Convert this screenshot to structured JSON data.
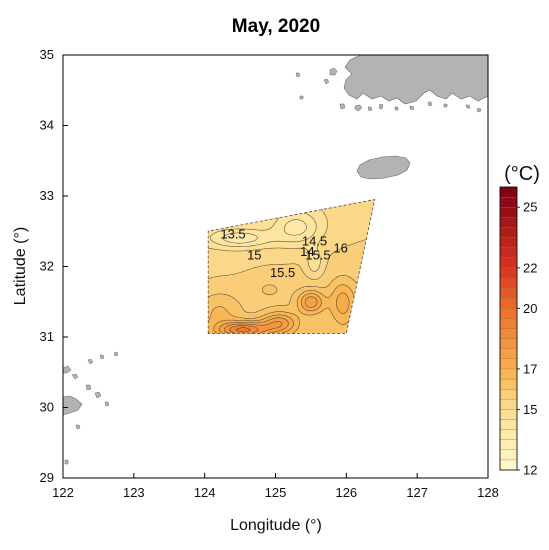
{
  "chart_data": {
    "type": "heatmap",
    "title": "May, 2020",
    "xlabel": "Longitude (°)",
    "ylabel": "Latitude (°)",
    "xlim": [
      122,
      128
    ],
    "ylim": [
      29,
      35
    ],
    "xticks": [
      "122",
      "123",
      "124",
      "125",
      "126",
      "127",
      "128"
    ],
    "yticks": [
      "29",
      "30",
      "31",
      "32",
      "33",
      "34",
      "35"
    ],
    "grid": false,
    "survey_region": {
      "longitude": [
        124.05,
        124.05,
        126.4,
        126.0,
        124.05
      ],
      "latitude": [
        31.05,
        32.5,
        32.95,
        31.05,
        31.05
      ]
    },
    "contour_labels": [
      {
        "text": "13.5",
        "lon": 124.4,
        "lat": 32.4
      },
      {
        "text": "15",
        "lon": 124.7,
        "lat": 32.1
      },
      {
        "text": "15.5",
        "lon": 125.1,
        "lat": 31.85
      },
      {
        "text": "14",
        "lon": 125.45,
        "lat": 32.15
      },
      {
        "text": "14.5",
        "lon": 125.55,
        "lat": 32.3
      },
      {
        "text": "15.5",
        "lon": 125.6,
        "lat": 32.1
      },
      {
        "text": "16",
        "lon": 125.92,
        "lat": 32.2
      }
    ],
    "colorbar": {
      "unit": "(°C)",
      "range": [
        12,
        26
      ],
      "step": 0.5,
      "ticks": [
        "12",
        "15",
        "17",
        "20",
        "22",
        "25"
      ]
    }
  },
  "colors": {
    "land": "#b3b3b3",
    "land_edge": "#666666",
    "contour_line": "#3b2e22",
    "colorbar_low": "#fffad0",
    "colorbar_mid": "#f6b14e",
    "colorbar_high": "#7a0013"
  }
}
